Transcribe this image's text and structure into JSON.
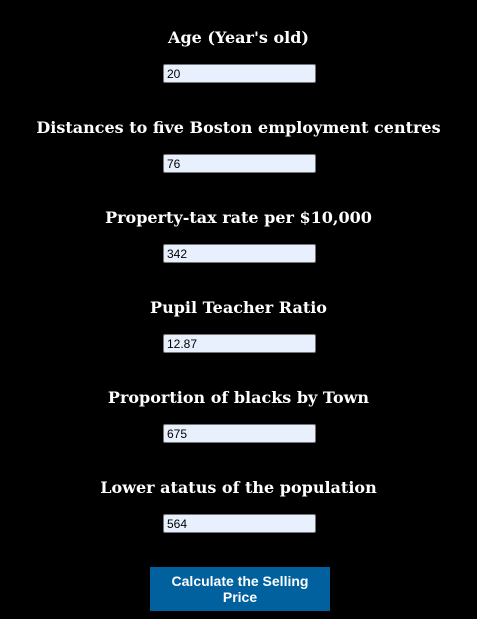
{
  "form": {
    "fields": [
      {
        "label": "Age (Year's old)",
        "value": "20"
      },
      {
        "label": "Distances to five Boston employment centres",
        "value": "76"
      },
      {
        "label": "Property-tax rate per $10,000",
        "value": "342"
      },
      {
        "label": "Pupil Teacher Ratio",
        "value": "12.87"
      },
      {
        "label": "Proportion of blacks by Town",
        "value": "675"
      },
      {
        "label": "Lower atatus of the population",
        "value": "564"
      }
    ],
    "submit_label": "Calculate the Selling Price"
  },
  "colors": {
    "background": "#000000",
    "label_text": "#ffffff",
    "input_background": "#e8f0fe",
    "button_background": "#00619e",
    "button_text": "#ffffff"
  }
}
